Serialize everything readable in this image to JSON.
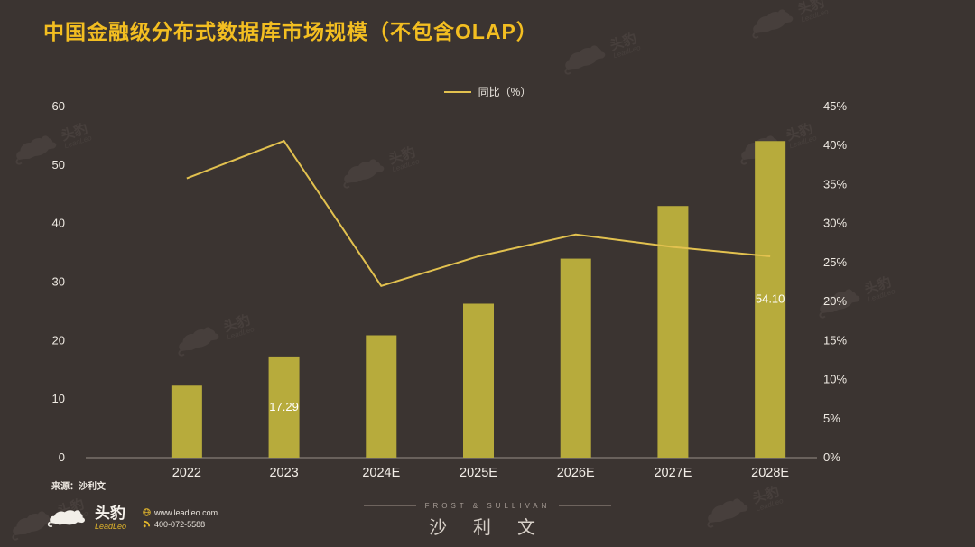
{
  "page": {
    "title": "中国金融级分布式数据库市场规模（不包含OLAP）",
    "source_note": "来源：沙利文",
    "colors": {
      "background": "#3b3431",
      "title": "#f3be21",
      "bar": "#b7ab3c",
      "line": "#e2c14f",
      "axis_text": "#efeae3",
      "bar_label_text": "#ffffff"
    }
  },
  "legend": {
    "items": [
      {
        "label": "同比（%）",
        "type": "line",
        "color": "#e2c14f"
      }
    ]
  },
  "chart_data": {
    "type": "bar",
    "title": "中国金融级分布式数据库市场规模（不包含OLAP）",
    "categories": [
      "2022",
      "2023",
      "2024E",
      "2025E",
      "2026E",
      "2027E",
      "2028E"
    ],
    "series": [
      {
        "name": "市场规模",
        "type": "bar",
        "axis": "left",
        "values": [
          12.3,
          17.29,
          20.9,
          26.3,
          34.0,
          43.0,
          54.1
        ]
      },
      {
        "name": "同比（%）",
        "type": "line",
        "axis": "right",
        "values": [
          35.8,
          40.6,
          22.0,
          25.8,
          28.6,
          27.0,
          25.8
        ]
      }
    ],
    "bar_labels": [
      {
        "category": "2023",
        "text": "17.29"
      },
      {
        "category": "2028E",
        "text": "54.10"
      }
    ],
    "left_axis": {
      "min": 0,
      "max": 60,
      "step": 10,
      "ticks": [
        "0",
        "10",
        "20",
        "30",
        "40",
        "50",
        "60"
      ]
    },
    "right_axis": {
      "min": 0,
      "max": 45,
      "step": 5,
      "ticks": [
        "0%",
        "5%",
        "10%",
        "15%",
        "20%",
        "25%",
        "30%",
        "35%",
        "40%",
        "45%"
      ]
    },
    "grid": false,
    "legend_position": "top-center"
  },
  "footer": {
    "brand": {
      "name": "头豹",
      "subname": "LeadLeo",
      "website": "www.leadleo.com",
      "phone": "400-072-5588"
    },
    "center": {
      "line1": "FROST & SULLIVAN",
      "line2": "沙 利 文"
    }
  },
  "watermark": {
    "text": "头豹",
    "subtext": "LeadLeo"
  }
}
